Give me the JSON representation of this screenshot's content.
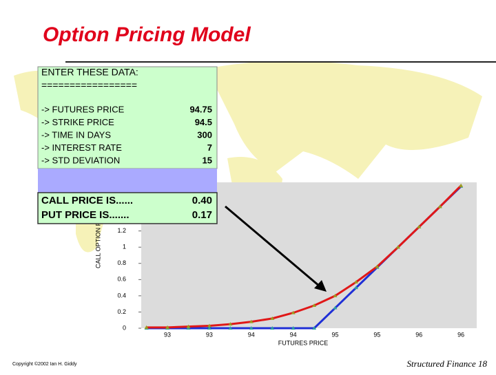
{
  "slide": {
    "title": "Option Pricing Model",
    "copyright": "Copyright ©2002 Ian H. Giddy",
    "footer": "Structured Finance 18"
  },
  "spreadsheet": {
    "heading": "ENTER THESE DATA:",
    "divider": "=================",
    "inputs": [
      [
        "-> FUTURES PRICE",
        "94.75"
      ],
      [
        "-> STRIKE PRICE",
        "94.5"
      ],
      [
        "-> TIME IN DAYS",
        "300"
      ],
      [
        "-> INTEREST RATE",
        "7"
      ],
      [
        "-> STD DEVIATION",
        "15"
      ]
    ],
    "outputs": [
      [
        "CALL PRICE IS......",
        "0.40"
      ],
      [
        "PUT PRICE IS.......",
        "0.17"
      ]
    ]
  },
  "chart_data": {
    "type": "line",
    "x_label": "FUTURES PRICE",
    "y_label": "CALL OPTION PRIC",
    "categories": [
      null,
      "93",
      null,
      "93",
      null,
      "94",
      null,
      "94",
      null,
      "95",
      null,
      "95",
      null,
      "96",
      null,
      "96"
    ],
    "series": [
      {
        "color": "#1f2fd6",
        "values": [
          0,
          0,
          0,
          0,
          0,
          0,
          0,
          0,
          0,
          0.25,
          0.5,
          0.75,
          1.0,
          1.25,
          1.5,
          1.75
        ]
      },
      {
        "color": "#e01818",
        "values": [
          0.01,
          0.01,
          0.02,
          0.03,
          0.05,
          0.08,
          0.12,
          0.19,
          0.28,
          0.4,
          0.57,
          0.76,
          1.0,
          1.25,
          1.5,
          1.76
        ]
      }
    ],
    "ylim": [
      0,
      1.8
    ],
    "yticks": [
      0,
      0.2,
      0.4,
      0.6,
      0.8,
      1,
      1.2
    ]
  }
}
